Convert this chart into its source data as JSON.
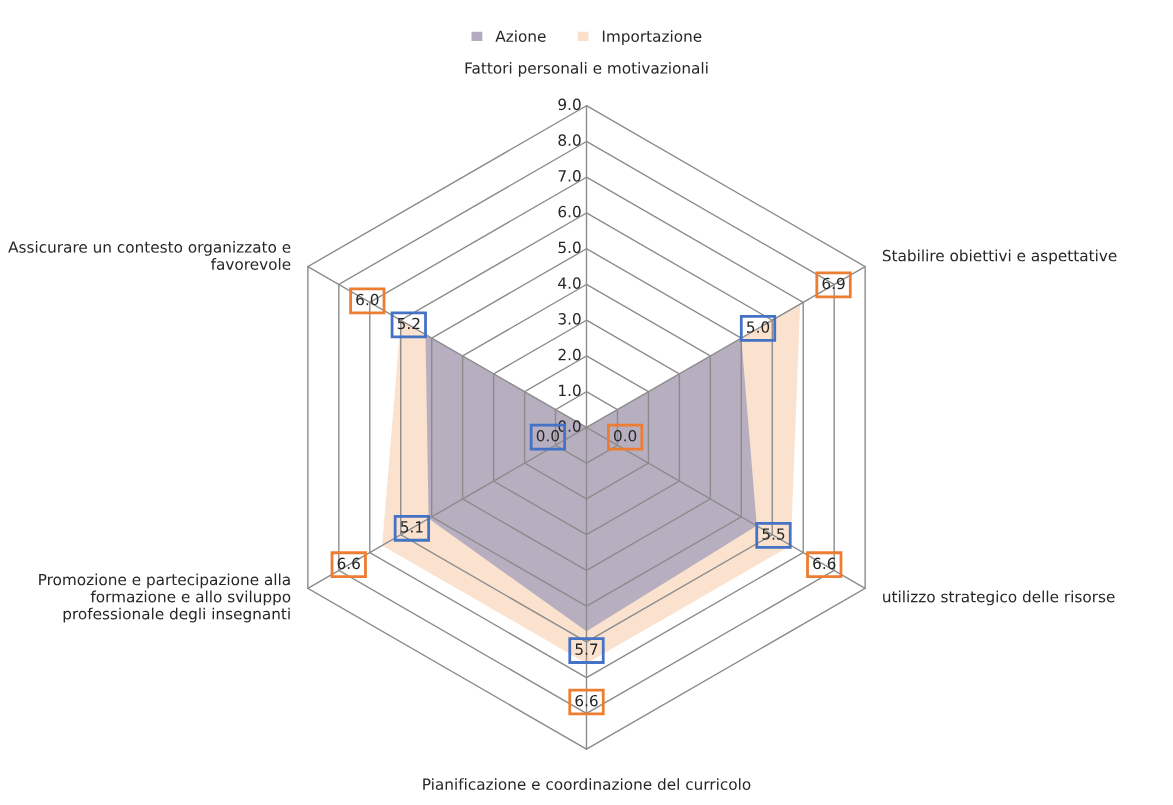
{
  "chart_data": {
    "type": "radar",
    "categories": [
      "Fattori personali e motivazionali",
      "Stabilire obiettivi e aspettative",
      "utilizzo strategico delle risorse",
      "Pianificazione e coordinazione del curricolo",
      "Promozione e partecipazione alla formazione e allo sviluppo professionale degli insegnanti",
      "Assicurare un contesto organizzato e favorevole"
    ],
    "series": [
      {
        "name": "Azione",
        "color": "#b3abbf",
        "values": [
          0.0,
          5.0,
          5.5,
          5.7,
          5.1,
          5.2
        ],
        "value_labels": [
          "0.0",
          "5.0",
          "5.5",
          "5.7",
          "5.1",
          "5.2"
        ]
      },
      {
        "name": "Importazione",
        "color": "#fbe0cc",
        "values": [
          0.0,
          6.9,
          6.6,
          6.6,
          6.6,
          6.0
        ],
        "value_labels": [
          "0.0",
          "6.9",
          "6.6",
          "6.6",
          "6.6",
          "6.0"
        ]
      }
    ],
    "ylim": [
      0,
      9
    ],
    "yticks": [
      {
        "value": 0,
        "label": "0.0"
      },
      {
        "value": 1,
        "label": "1.0"
      },
      {
        "value": 2,
        "label": "2.0"
      },
      {
        "value": 3,
        "label": "3.0"
      },
      {
        "value": 4,
        "label": "4.0"
      },
      {
        "value": 5,
        "label": "5.0"
      },
      {
        "value": 6,
        "label": "6.0"
      },
      {
        "value": 7,
        "label": "7.0"
      },
      {
        "value": 8,
        "label": "8.0"
      },
      {
        "value": 9,
        "label": "9.0"
      }
    ],
    "grid": true,
    "legend": "top"
  }
}
